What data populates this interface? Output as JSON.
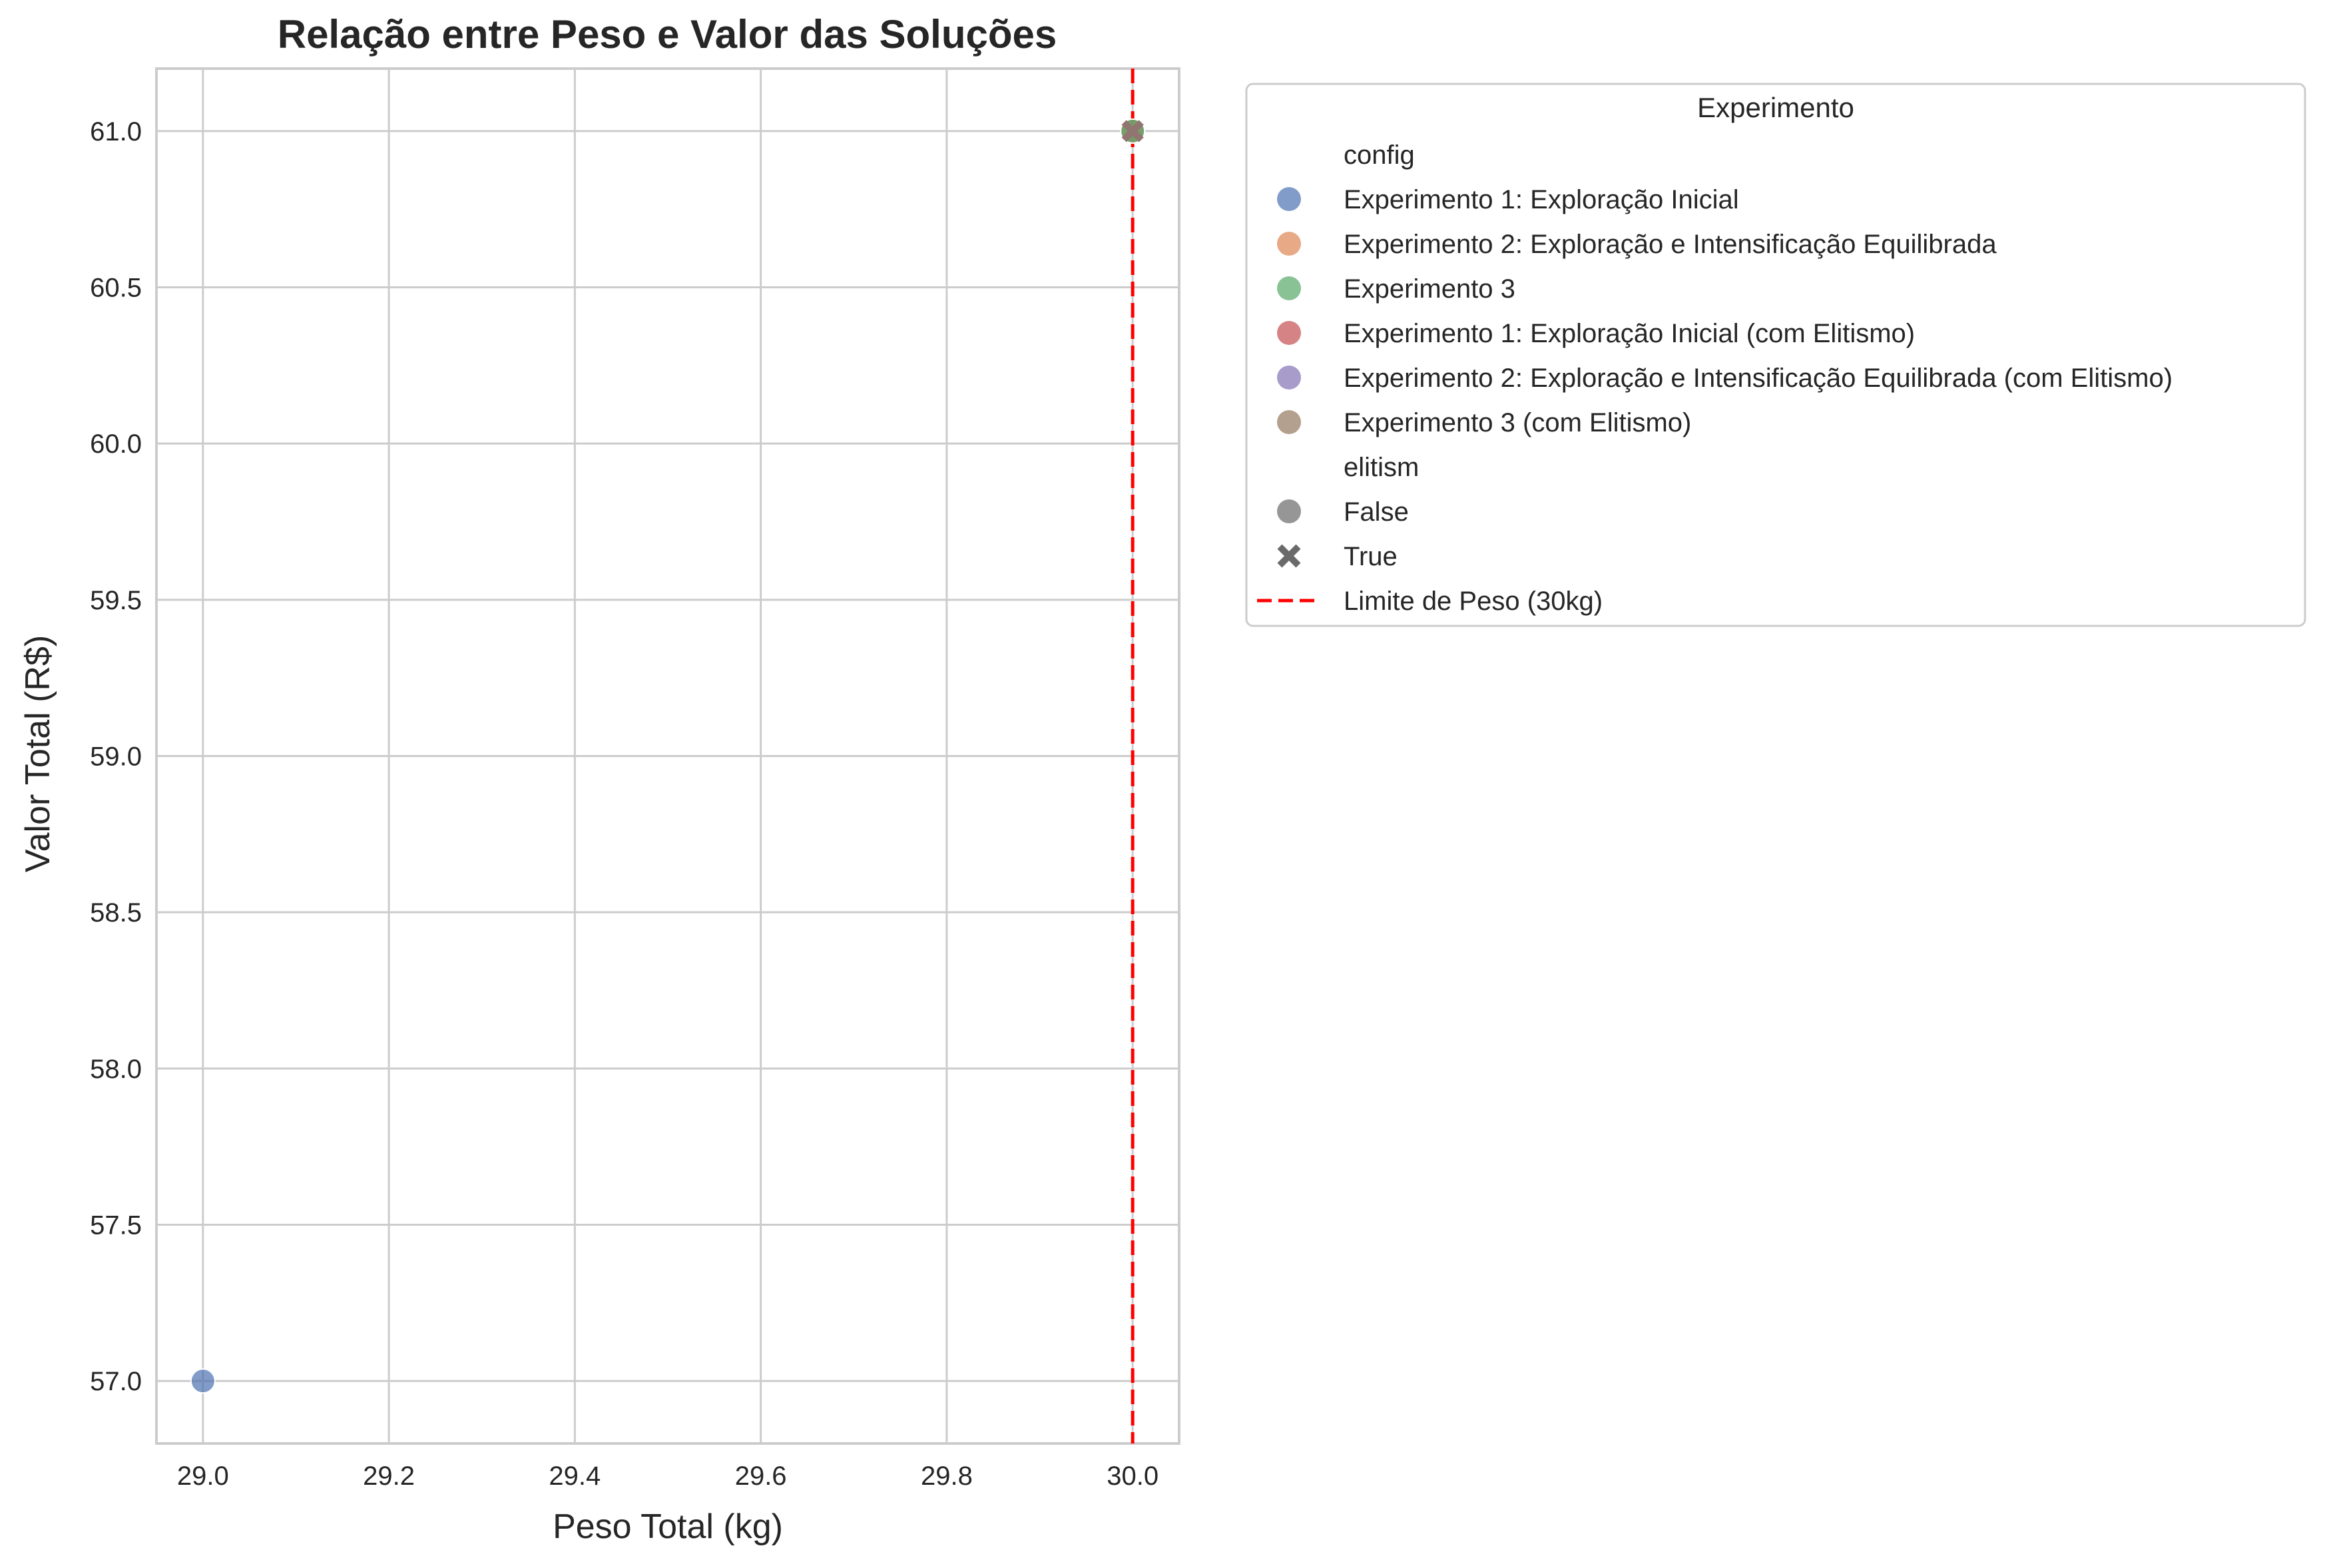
{
  "chart_data": {
    "type": "scatter",
    "title": "Relação entre Peso e Valor das Soluções",
    "xlabel": "Peso Total (kg)",
    "ylabel": "Valor Total (R$)",
    "xlim": [
      28.95,
      30.05
    ],
    "ylim": [
      56.8,
      61.2
    ],
    "xticks": [
      29.0,
      29.2,
      29.4,
      29.6,
      29.8,
      30.0
    ],
    "xtick_labels": [
      "29.0",
      "29.2",
      "29.4",
      "29.6",
      "29.8",
      "30.0"
    ],
    "yticks": [
      57.0,
      57.5,
      58.0,
      58.5,
      59.0,
      59.5,
      60.0,
      60.5,
      61.0
    ],
    "ytick_labels": [
      "57.0",
      "57.5",
      "58.0",
      "58.5",
      "59.0",
      "59.5",
      "60.0",
      "60.5",
      "61.0"
    ],
    "grid": true,
    "series": [
      {
        "name": "Experimento 1: Exploração Inicial",
        "color": "#4c72b0",
        "marker": "circle",
        "elitism": "False",
        "points": [
          {
            "x": 29.0,
            "y": 57.0
          },
          {
            "x": 30.0,
            "y": 61.0
          }
        ]
      },
      {
        "name": "Experimento 2: Exploração e Intensificação Equilibrada",
        "color": "#dd8452",
        "marker": "circle",
        "elitism": "False",
        "points": [
          {
            "x": 30.0,
            "y": 61.0
          }
        ]
      },
      {
        "name": "Experimento 3",
        "color": "#55a868",
        "marker": "circle",
        "elitism": "False",
        "points": [
          {
            "x": 30.0,
            "y": 61.0
          }
        ]
      },
      {
        "name": "Experimento 1: Exploração Inicial (com Elitismo)",
        "color": "#c44e52",
        "marker": "x",
        "elitism": "True",
        "points": [
          {
            "x": 30.0,
            "y": 61.0
          }
        ]
      },
      {
        "name": "Experimento 2: Exploração e Intensificação Equilibrada (com Elitismo)",
        "color": "#8172b3",
        "marker": "x",
        "elitism": "True",
        "points": [
          {
            "x": 30.0,
            "y": 61.0
          }
        ]
      },
      {
        "name": "Experimento 3 (com Elitismo)",
        "color": "#937860",
        "marker": "x",
        "elitism": "True",
        "points": [
          {
            "x": 30.0,
            "y": 61.0
          }
        ]
      }
    ],
    "reference_lines": [
      {
        "name": "Limite de Peso (30kg)",
        "axis": "x",
        "value": 30.0,
        "color": "#ff0000",
        "style": "dashed"
      }
    ],
    "legend": {
      "title": "Experimento",
      "placement": "outside-right",
      "hue_title": "config",
      "style_title": "elitism",
      "style_entries": [
        {
          "label": "False",
          "marker": "circle",
          "color": "#6a6a6a"
        },
        {
          "label": "True",
          "marker": "x",
          "color": "#6a6a6a"
        }
      ]
    }
  }
}
